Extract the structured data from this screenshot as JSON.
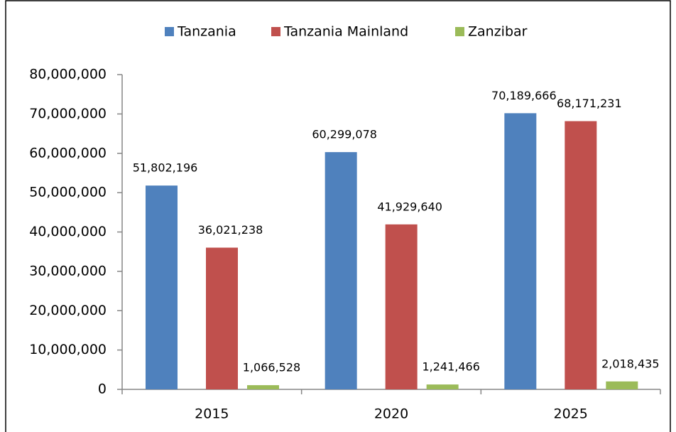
{
  "chart_data": {
    "type": "bar",
    "categories": [
      "2015",
      "2020",
      "2025"
    ],
    "series": [
      {
        "name": "Tanzania",
        "color": "#4f81bd",
        "values": [
          51802196,
          60299078,
          70189666
        ],
        "value_labels": [
          "51,802,196",
          "60,299,078",
          "70,189,666"
        ]
      },
      {
        "name": "Tanzania Mainland",
        "color": "#c0504d",
        "values": [
          36021238,
          41929640,
          68171231
        ],
        "value_labels": [
          "36,021,238",
          "41,929,640",
          "68,171,231"
        ]
      },
      {
        "name": "Zanzibar",
        "color": "#9bbb59",
        "values": [
          1066528,
          1241466,
          2018435
        ],
        "value_labels": [
          "1,066,528",
          "1,241,466",
          "2,018,435"
        ]
      }
    ],
    "ylim": [
      0,
      80000000
    ],
    "yticks": [
      0,
      {
        "value": 10000000,
        "label": "10,000,000"
      },
      {
        "value": 20000000,
        "label": "20,000,000"
      },
      {
        "value": 30000000,
        "label": "30,000,000"
      },
      {
        "value": 40000000,
        "label": "40,000,000"
      },
      {
        "value": 50000000,
        "label": "50,000,000"
      },
      {
        "value": 60000000,
        "label": "60,000,000"
      },
      {
        "value": 70000000,
        "label": "70,000,000"
      },
      {
        "value": 80000000,
        "label": "80,000,000"
      }
    ],
    "grid": false,
    "legend": "top"
  }
}
